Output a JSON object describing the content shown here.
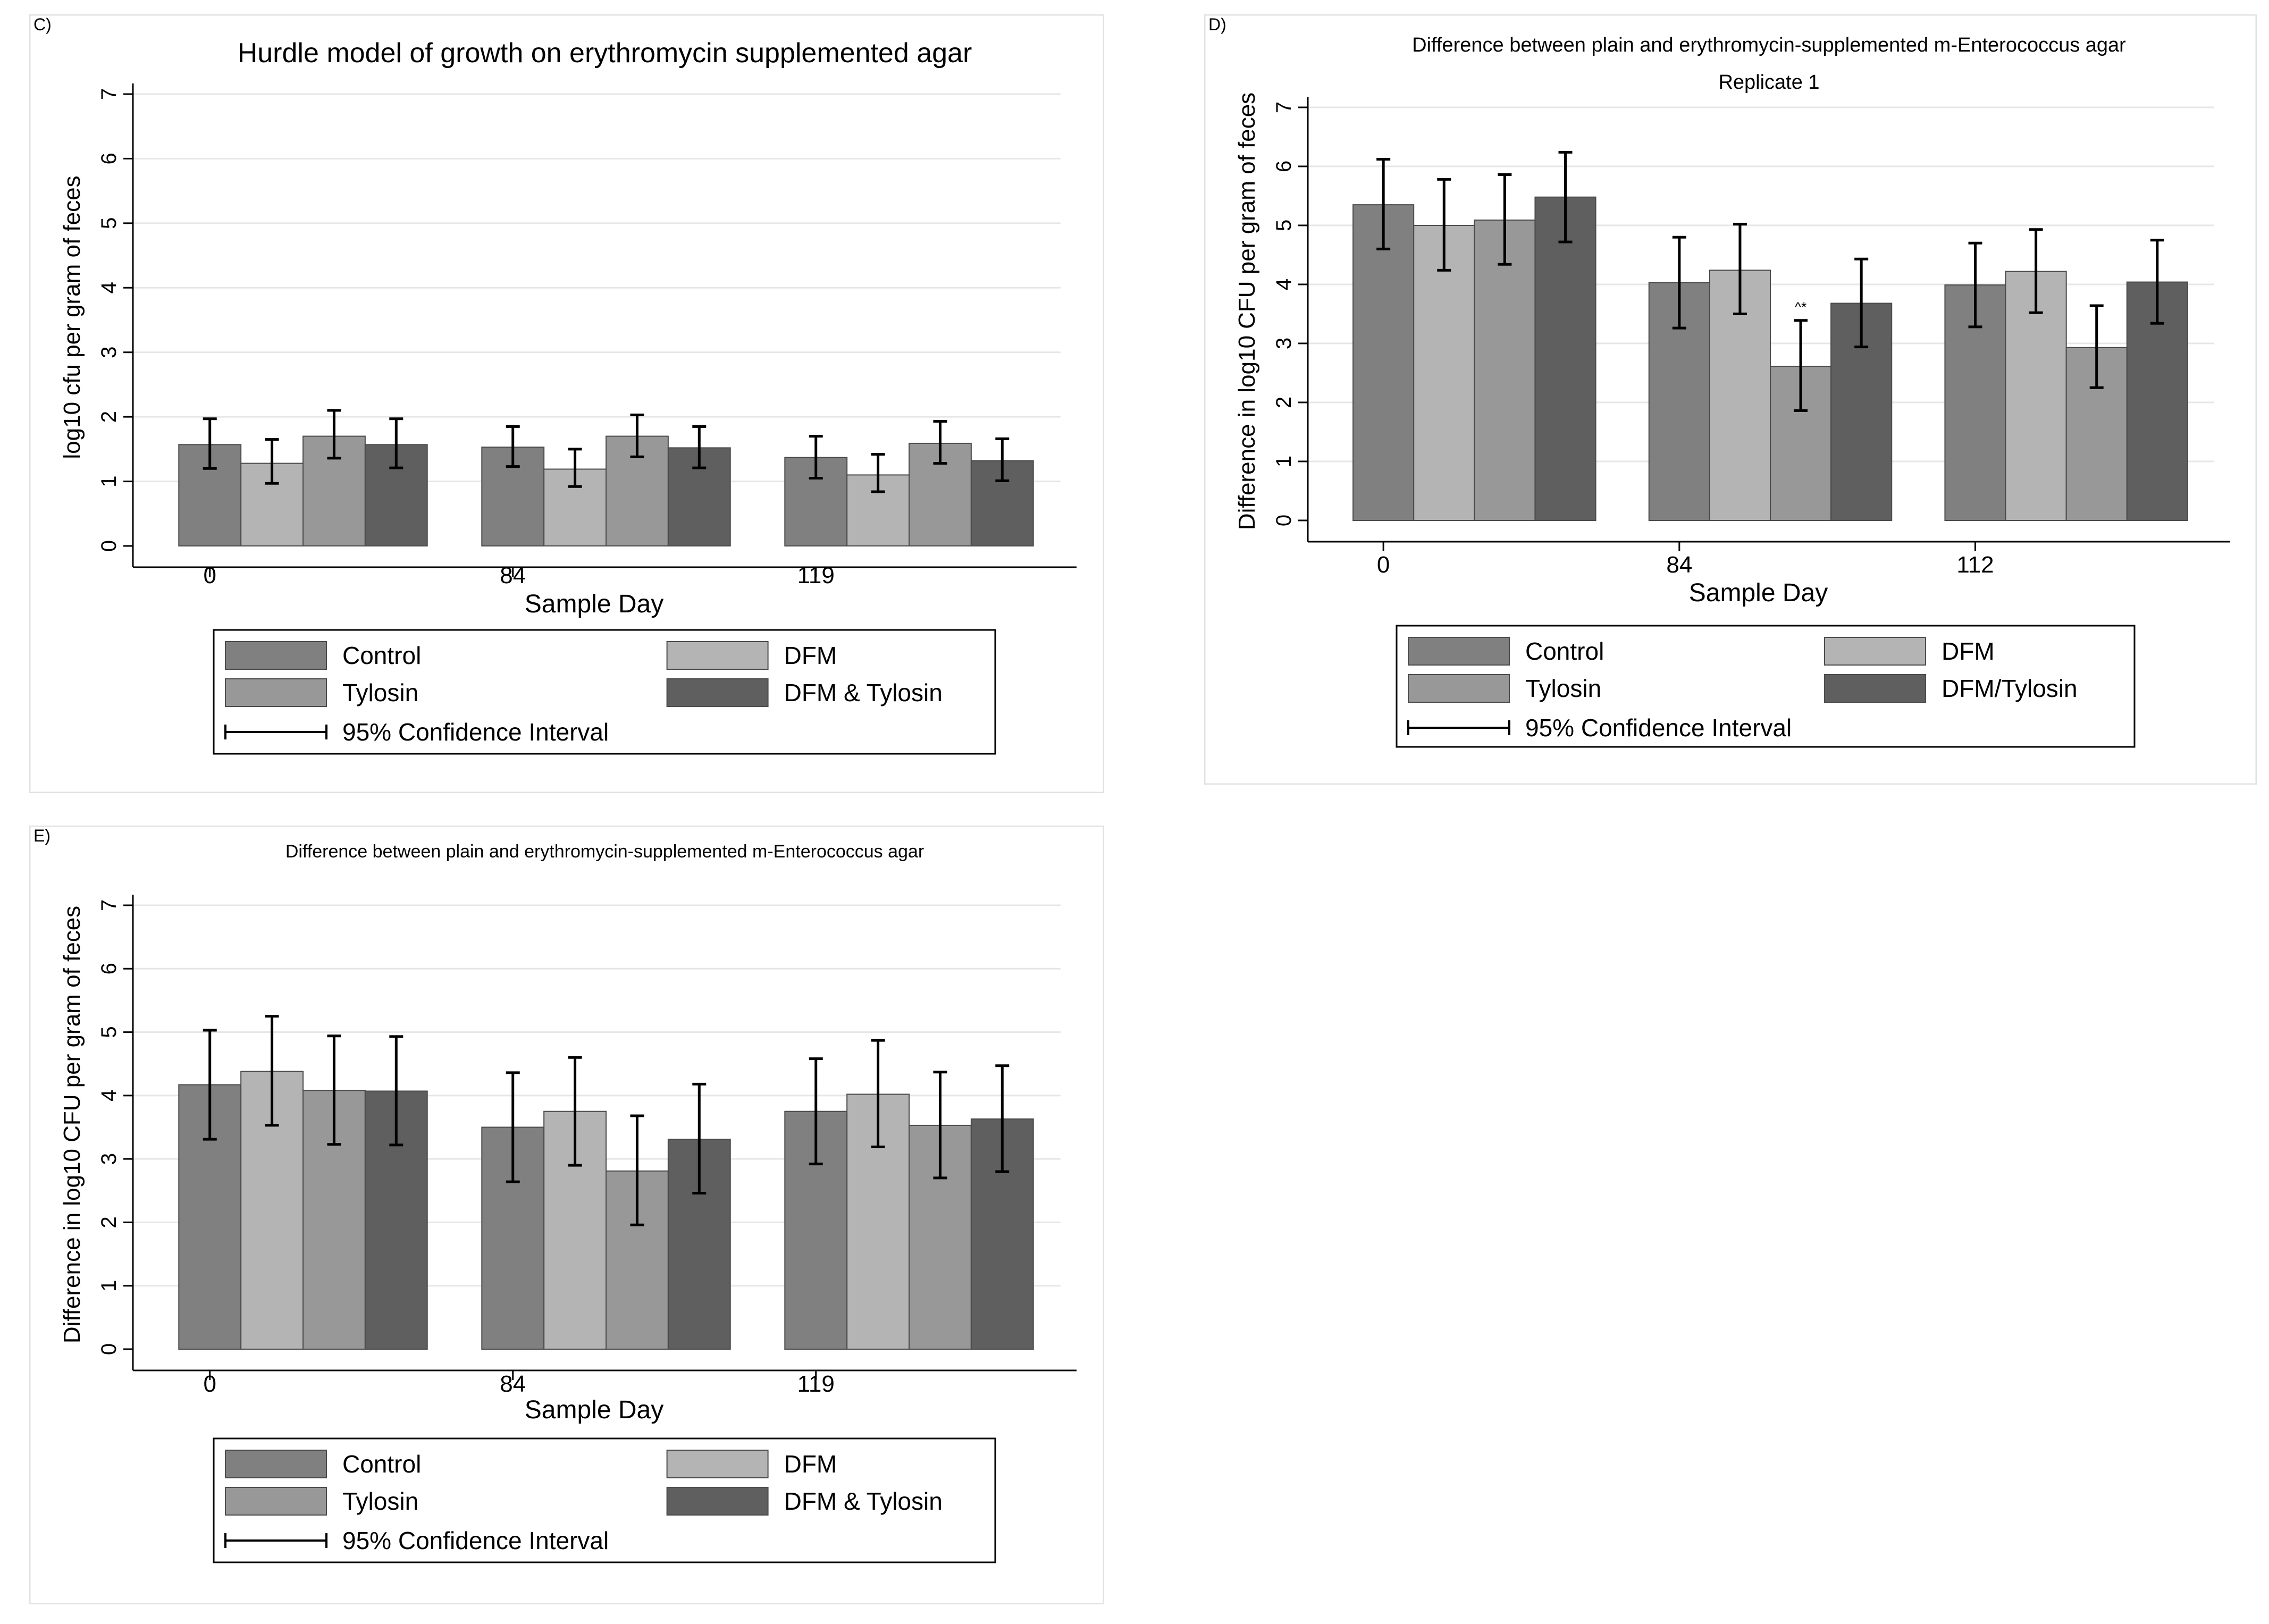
{
  "legend_labels": {
    "control": "Control",
    "dfm": "DFM",
    "tylosin": "Tylosin",
    "ci": "95% Confidence Interval"
  },
  "colors": {
    "control": "#808080",
    "dfm": "#b4b4b4",
    "tylosin": "#989898",
    "dfm_tylosin": "#5f5f5f",
    "panel_border": "#e2e2e2",
    "grid": "#e6e6e6"
  },
  "chart_data": [
    {
      "id": "C",
      "panel_label": "C)",
      "type": "bar",
      "title": "Hurdle model of growth on erythromycin supplemented agar",
      "subtitle": "",
      "xlabel": "Sample Day",
      "ylabel": "log10 cfu per gram of feces",
      "categories": [
        "0",
        "84",
        "119"
      ],
      "yticks": [
        "0",
        "1",
        "2",
        "3",
        "4",
        "5",
        "6",
        "7"
      ],
      "ylim": [
        0,
        7
      ],
      "grid": true,
      "legend": {
        "placement": "bottom",
        "combo_label": "DFM & Tylosin"
      },
      "series": [
        {
          "name": "Control",
          "values": [
            1.57,
            1.53,
            1.37
          ],
          "ci_low": [
            1.2,
            1.23,
            1.05
          ],
          "ci_high": [
            1.97,
            1.85,
            1.7
          ]
        },
        {
          "name": "DFM",
          "values": [
            1.28,
            1.19,
            1.1
          ],
          "ci_low": [
            0.97,
            0.92,
            0.84
          ],
          "ci_high": [
            1.65,
            1.5,
            1.42
          ]
        },
        {
          "name": "Tylosin",
          "values": [
            1.7,
            1.7,
            1.59
          ],
          "ci_low": [
            1.36,
            1.38,
            1.28
          ],
          "ci_high": [
            2.1,
            2.03,
            1.93
          ]
        },
        {
          "name": "DFM & Tylosin",
          "values": [
            1.57,
            1.52,
            1.32
          ],
          "ci_low": [
            1.21,
            1.21,
            1.01
          ],
          "ci_high": [
            1.97,
            1.85,
            1.66
          ]
        }
      ],
      "annotations": []
    },
    {
      "id": "D",
      "panel_label": "D)",
      "type": "bar",
      "title": "Difference between plain and erythromycin-supplemented m-Enterococcus agar",
      "subtitle": "Replicate 1",
      "xlabel": "Sample Day",
      "ylabel": "Difference in log10 CFU per gram of feces",
      "categories": [
        "0",
        "84",
        "112"
      ],
      "yticks": [
        "0",
        "1",
        "2",
        "3",
        "4",
        "5",
        "6",
        "7"
      ],
      "ylim": [
        0,
        7
      ],
      "grid": true,
      "legend": {
        "placement": "bottom",
        "combo_label": "DFM/Tylosin"
      },
      "series": [
        {
          "name": "Control",
          "values": [
            5.35,
            4.03,
            3.99
          ],
          "ci_low": [
            4.6,
            3.26,
            3.28
          ],
          "ci_high": [
            6.12,
            4.8,
            4.7
          ]
        },
        {
          "name": "DFM",
          "values": [
            5.0,
            4.24,
            4.22
          ],
          "ci_low": [
            4.24,
            3.5,
            3.52
          ],
          "ci_high": [
            5.78,
            5.02,
            4.93
          ]
        },
        {
          "name": "Tylosin",
          "values": [
            5.09,
            2.61,
            2.93
          ],
          "ci_low": [
            4.34,
            1.86,
            2.25
          ],
          "ci_high": [
            5.86,
            3.39,
            3.64
          ]
        },
        {
          "name": "DFM/Tylosin",
          "values": [
            5.48,
            3.68,
            4.04
          ],
          "ci_low": [
            4.72,
            2.94,
            3.34
          ],
          "ci_high": [
            6.24,
            4.43,
            4.75
          ]
        }
      ],
      "annotations": [
        {
          "text": "^*",
          "category": "84",
          "series": "Tylosin",
          "y": 3.5
        }
      ]
    },
    {
      "id": "E",
      "panel_label": "E)",
      "type": "bar",
      "title": "Difference between plain and erythromycin-supplemented m-Enterococcus agar",
      "subtitle": "",
      "xlabel": "Sample Day",
      "ylabel": "Difference in log10 CFU per gram of feces",
      "categories": [
        "0",
        "84",
        "119"
      ],
      "yticks": [
        "0",
        "1",
        "2",
        "3",
        "4",
        "5",
        "6",
        "7"
      ],
      "ylim": [
        0,
        7
      ],
      "grid": true,
      "legend": {
        "placement": "bottom",
        "combo_label": "DFM & Tylosin"
      },
      "series": [
        {
          "name": "Control",
          "values": [
            4.17,
            3.5,
            3.75
          ],
          "ci_low": [
            3.31,
            2.64,
            2.92
          ],
          "ci_high": [
            5.03,
            4.36,
            4.58
          ]
        },
        {
          "name": "DFM",
          "values": [
            4.38,
            3.75,
            4.02
          ],
          "ci_low": [
            3.53,
            2.9,
            3.19
          ],
          "ci_high": [
            5.25,
            4.6,
            4.87
          ]
        },
        {
          "name": "Tylosin",
          "values": [
            4.08,
            2.81,
            3.53
          ],
          "ci_low": [
            3.23,
            1.96,
            2.7
          ],
          "ci_high": [
            4.94,
            3.68,
            4.37
          ]
        },
        {
          "name": "DFM & Tylosin",
          "values": [
            4.07,
            3.31,
            3.63
          ],
          "ci_low": [
            3.22,
            2.46,
            2.8
          ],
          "ci_high": [
            4.93,
            4.18,
            4.47
          ]
        }
      ],
      "annotations": []
    }
  ]
}
